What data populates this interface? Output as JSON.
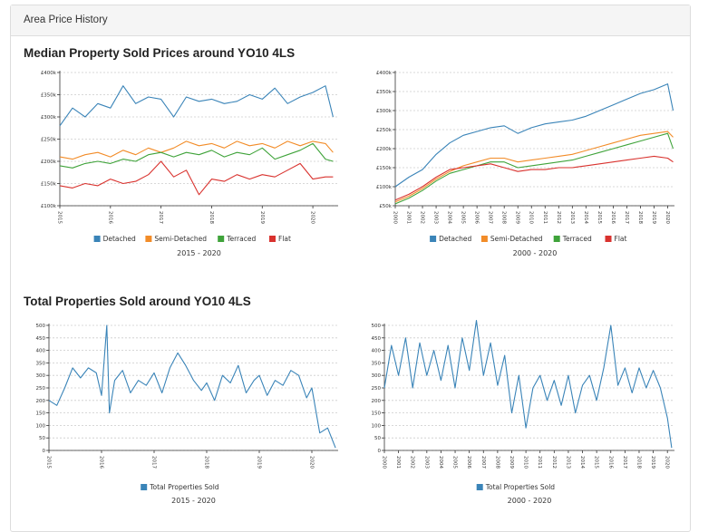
{
  "panel": {
    "title": "Area Price History"
  },
  "sections": {
    "prices_title": "Median Property Sold Prices around YO10 4LS",
    "sales_title": "Total Properties Sold around YO10 4LS"
  },
  "colors": {
    "Detached": "#3a84b8",
    "Semi-Detached": "#f28c28",
    "Terraced": "#3fa33a",
    "Flat": "#d9322e",
    "Total Properties Sold": "#3a84b8"
  },
  "chart_data": [
    {
      "type": "line",
      "subtitle": "2015 - 2020",
      "x_ticks": [
        "2015",
        "2016",
        "2017",
        "2018",
        "2019",
        "2020"
      ],
      "xlim": [
        2015,
        2020.5
      ],
      "ylim": [
        100000,
        400000
      ],
      "y_ticks": [
        "£100k",
        "£150k",
        "£200k",
        "£250k",
        "£300k",
        "£350k",
        "£400k"
      ],
      "y_tick_values": [
        100000,
        150000,
        200000,
        250000,
        300000,
        350000,
        400000
      ],
      "grid": true,
      "legend": "bottom",
      "series": [
        {
          "name": "Detached",
          "x": [
            2015.0,
            2015.25,
            2015.5,
            2015.75,
            2016.0,
            2016.25,
            2016.5,
            2016.75,
            2017.0,
            2017.25,
            2017.5,
            2017.75,
            2018.0,
            2018.25,
            2018.5,
            2018.75,
            2019.0,
            2019.25,
            2019.5,
            2019.75,
            2020.0,
            2020.25,
            2020.4
          ],
          "y": [
            280000,
            320000,
            300000,
            330000,
            320000,
            370000,
            330000,
            345000,
            340000,
            300000,
            345000,
            335000,
            340000,
            330000,
            335000,
            350000,
            340000,
            365000,
            330000,
            345000,
            355000,
            370000,
            300000
          ]
        },
        {
          "name": "Semi-Detached",
          "x": [
            2015.0,
            2015.25,
            2015.5,
            2015.75,
            2016.0,
            2016.25,
            2016.5,
            2016.75,
            2017.0,
            2017.25,
            2017.5,
            2017.75,
            2018.0,
            2018.25,
            2018.5,
            2018.75,
            2019.0,
            2019.25,
            2019.5,
            2019.75,
            2020.0,
            2020.25,
            2020.4
          ],
          "y": [
            210000,
            205000,
            215000,
            220000,
            210000,
            225000,
            215000,
            230000,
            220000,
            230000,
            245000,
            235000,
            240000,
            230000,
            245000,
            235000,
            240000,
            230000,
            245000,
            235000,
            245000,
            240000,
            220000
          ]
        },
        {
          "name": "Terraced",
          "x": [
            2015.0,
            2015.25,
            2015.5,
            2015.75,
            2016.0,
            2016.25,
            2016.5,
            2016.75,
            2017.0,
            2017.25,
            2017.5,
            2017.75,
            2018.0,
            2018.25,
            2018.5,
            2018.75,
            2019.0,
            2019.25,
            2019.5,
            2019.75,
            2020.0,
            2020.25,
            2020.4
          ],
          "y": [
            190000,
            185000,
            195000,
            200000,
            195000,
            205000,
            200000,
            215000,
            220000,
            210000,
            220000,
            215000,
            225000,
            210000,
            220000,
            215000,
            230000,
            205000,
            215000,
            225000,
            240000,
            205000,
            200000
          ]
        },
        {
          "name": "Flat",
          "x": [
            2015.0,
            2015.25,
            2015.5,
            2015.75,
            2016.0,
            2016.25,
            2016.5,
            2016.75,
            2017.0,
            2017.25,
            2017.5,
            2017.75,
            2018.0,
            2018.25,
            2018.5,
            2018.75,
            2019.0,
            2019.25,
            2019.5,
            2019.75,
            2020.0,
            2020.25,
            2020.4
          ],
          "y": [
            145000,
            140000,
            150000,
            145000,
            160000,
            150000,
            155000,
            170000,
            200000,
            165000,
            180000,
            125000,
            160000,
            155000,
            170000,
            160000,
            170000,
            165000,
            180000,
            195000,
            160000,
            165000,
            165000
          ]
        }
      ]
    },
    {
      "type": "line",
      "subtitle": "2000 - 2020",
      "x_ticks": [
        "2000",
        "2001",
        "2002",
        "2003",
        "2004",
        "2005",
        "2006",
        "2007",
        "2008",
        "2009",
        "2010",
        "2011",
        "2012",
        "2013",
        "2014",
        "2015",
        "2016",
        "2017",
        "2018",
        "2019",
        "2020"
      ],
      "xlim": [
        2000,
        2020.5
      ],
      "ylim": [
        50000,
        400000
      ],
      "y_ticks": [
        "£50k",
        "£100k",
        "£150k",
        "£200k",
        "£250k",
        "£300k",
        "£350k",
        "£400k"
      ],
      "y_tick_values": [
        50000,
        100000,
        150000,
        200000,
        250000,
        300000,
        350000,
        400000
      ],
      "grid": true,
      "legend": "bottom",
      "series": [
        {
          "name": "Detached",
          "x": [
            2000,
            2001,
            2002,
            2003,
            2004,
            2005,
            2006,
            2007,
            2008,
            2009,
            2010,
            2011,
            2012,
            2013,
            2014,
            2015,
            2016,
            2017,
            2018,
            2019,
            2020,
            2020.4
          ],
          "y": [
            100000,
            125000,
            145000,
            185000,
            215000,
            235000,
            245000,
            255000,
            260000,
            240000,
            255000,
            265000,
            270000,
            275000,
            285000,
            300000,
            315000,
            330000,
            345000,
            355000,
            370000,
            300000
          ]
        },
        {
          "name": "Semi-Detached",
          "x": [
            2000,
            2001,
            2002,
            2003,
            2004,
            2005,
            2006,
            2007,
            2008,
            2009,
            2010,
            2011,
            2012,
            2013,
            2014,
            2015,
            2016,
            2017,
            2018,
            2019,
            2020,
            2020.4
          ],
          "y": [
            60000,
            75000,
            95000,
            120000,
            140000,
            155000,
            165000,
            175000,
            175000,
            165000,
            170000,
            175000,
            180000,
            185000,
            195000,
            205000,
            215000,
            225000,
            235000,
            240000,
            245000,
            230000
          ]
        },
        {
          "name": "Terraced",
          "x": [
            2000,
            2001,
            2002,
            2003,
            2004,
            2005,
            2006,
            2007,
            2008,
            2009,
            2010,
            2011,
            2012,
            2013,
            2014,
            2015,
            2016,
            2017,
            2018,
            2019,
            2020,
            2020.4
          ],
          "y": [
            55000,
            70000,
            90000,
            115000,
            135000,
            145000,
            155000,
            165000,
            165000,
            150000,
            155000,
            160000,
            165000,
            170000,
            180000,
            190000,
            200000,
            210000,
            220000,
            230000,
            240000,
            200000
          ]
        },
        {
          "name": "Flat",
          "x": [
            2000,
            2001,
            2002,
            2003,
            2004,
            2005,
            2006,
            2007,
            2008,
            2009,
            2010,
            2011,
            2012,
            2013,
            2014,
            2015,
            2016,
            2017,
            2018,
            2019,
            2020,
            2020.4
          ],
          "y": [
            65000,
            80000,
            100000,
            125000,
            145000,
            150000,
            155000,
            160000,
            150000,
            140000,
            145000,
            145000,
            150000,
            150000,
            155000,
            160000,
            165000,
            170000,
            175000,
            180000,
            175000,
            165000
          ]
        }
      ]
    },
    {
      "type": "line",
      "subtitle": "2015 - 2020",
      "x_ticks": [
        "2015",
        "2016",
        "2017",
        "2018",
        "2019",
        "2020"
      ],
      "xlim": [
        2015,
        2020.5
      ],
      "ylim": [
        0,
        500
      ],
      "y_ticks": [
        "0",
        "50",
        "100",
        "150",
        "200",
        "250",
        "300",
        "350",
        "400",
        "450",
        "500"
      ],
      "y_tick_values": [
        0,
        50,
        100,
        150,
        200,
        250,
        300,
        350,
        400,
        450,
        500
      ],
      "grid": true,
      "legend": "bottom",
      "series": [
        {
          "name": "Total Properties Sold",
          "x": [
            2015.0,
            2015.15,
            2015.3,
            2015.45,
            2015.6,
            2015.75,
            2015.9,
            2016.0,
            2016.1,
            2016.15,
            2016.25,
            2016.4,
            2016.55,
            2016.7,
            2016.85,
            2017.0,
            2017.15,
            2017.3,
            2017.45,
            2017.6,
            2017.75,
            2017.9,
            2018.0,
            2018.15,
            2018.3,
            2018.45,
            2018.6,
            2018.75,
            2018.9,
            2019.0,
            2019.15,
            2019.3,
            2019.45,
            2019.6,
            2019.75,
            2019.9,
            2020.0,
            2020.15,
            2020.3,
            2020.45
          ],
          "y": [
            200,
            180,
            250,
            330,
            290,
            330,
            310,
            220,
            500,
            150,
            280,
            320,
            230,
            280,
            260,
            310,
            230,
            330,
            390,
            340,
            280,
            240,
            270,
            200,
            300,
            270,
            340,
            230,
            280,
            300,
            220,
            280,
            260,
            320,
            300,
            210,
            250,
            70,
            90,
            10
          ]
        }
      ]
    },
    {
      "type": "line",
      "subtitle": "2000 - 2020",
      "x_ticks": [
        "2000",
        "2001",
        "2002",
        "2003",
        "2004",
        "2005",
        "2006",
        "2007",
        "2008",
        "2009",
        "2010",
        "2011",
        "2012",
        "2013",
        "2014",
        "2015",
        "2016",
        "2017",
        "2018",
        "2019",
        "2020"
      ],
      "xlim": [
        2000,
        2020.5
      ],
      "ylim": [
        0,
        500
      ],
      "y_ticks": [
        "0",
        "50",
        "100",
        "150",
        "200",
        "250",
        "300",
        "350",
        "400",
        "450",
        "500"
      ],
      "y_tick_values": [
        0,
        50,
        100,
        150,
        200,
        250,
        300,
        350,
        400,
        450,
        500
      ],
      "grid": true,
      "legend": "bottom",
      "series": [
        {
          "name": "Total Properties Sold",
          "x": [
            2000,
            2000.5,
            2001,
            2001.5,
            2002,
            2002.5,
            2003,
            2003.5,
            2004,
            2004.5,
            2005,
            2005.5,
            2006,
            2006.5,
            2007,
            2007.5,
            2008,
            2008.5,
            2009,
            2009.5,
            2010,
            2010.5,
            2011,
            2011.5,
            2012,
            2012.5,
            2013,
            2013.5,
            2014,
            2014.5,
            2015,
            2015.5,
            2016,
            2016.5,
            2017,
            2017.5,
            2018,
            2018.5,
            2019,
            2019.5,
            2020,
            2020.3
          ],
          "y": [
            250,
            420,
            300,
            450,
            250,
            430,
            300,
            400,
            280,
            420,
            250,
            450,
            320,
            520,
            300,
            430,
            260,
            380,
            150,
            300,
            90,
            250,
            300,
            200,
            280,
            180,
            300,
            150,
            260,
            300,
            200,
            330,
            500,
            260,
            330,
            230,
            330,
            250,
            320,
            250,
            130,
            10
          ]
        }
      ]
    }
  ]
}
